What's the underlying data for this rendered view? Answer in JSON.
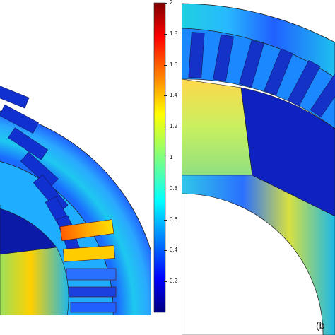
{
  "colorbar": {
    "ticks": [
      "2",
      "1.8",
      "1.6",
      "1.4",
      "1.2",
      "1",
      "0.8",
      "0.6",
      "0.4",
      "0.2"
    ],
    "max": 2,
    "min": 0,
    "colormap": [
      "#00007f",
      "#0000ff",
      "#007fff",
      "#00ffff",
      "#7fff7f",
      "#ffff00",
      "#ff7f00",
      "#ff0000",
      "#7f0000"
    ]
  },
  "panel_b_label": "(b"
}
